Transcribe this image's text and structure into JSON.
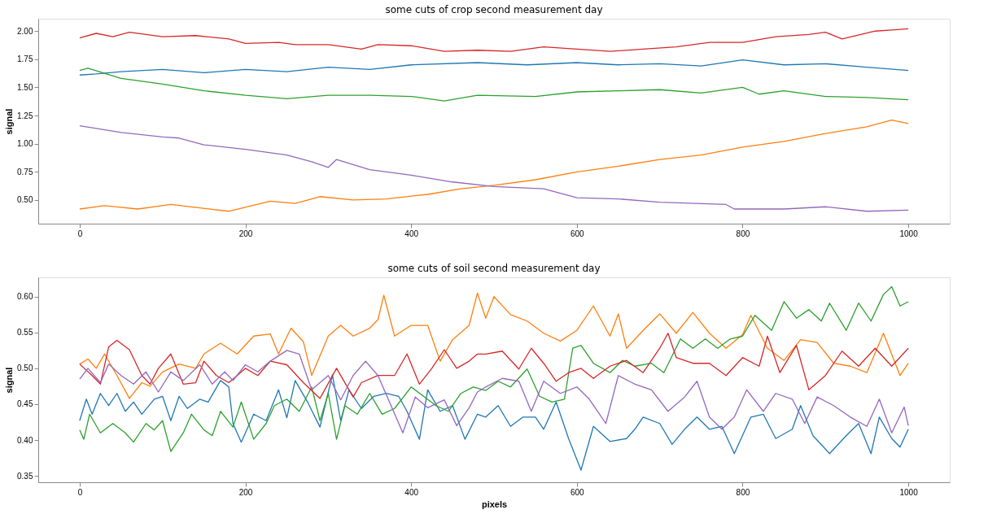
{
  "chart_data": [
    {
      "type": "line",
      "title": "some cuts of crop second measurement day",
      "ylabel": "signal",
      "xlim": [
        -50,
        1050
      ],
      "xticks": [
        0,
        200,
        400,
        600,
        800,
        1000
      ],
      "ylim": [
        0.29,
        2.11
      ],
      "yticks": [
        {
          "value": 0.5,
          "label": "0.50"
        },
        {
          "value": 0.75,
          "label": "0.75"
        },
        {
          "value": 1.0,
          "label": "1.00"
        },
        {
          "value": 1.25,
          "label": "1.25"
        },
        {
          "value": 1.5,
          "label": "1.50"
        },
        {
          "value": 1.75,
          "label": "1.75"
        },
        {
          "value": 2.0,
          "label": "2.00"
        }
      ],
      "grid": false,
      "legend": false,
      "marker": "none",
      "line_style": "solid",
      "series": [
        {
          "color": "#1f77b4",
          "x": [
            0,
            20,
            50,
            100,
            150,
            200,
            250,
            300,
            350,
            400,
            480,
            540,
            600,
            650,
            700,
            750,
            800,
            850,
            900,
            950,
            1000
          ],
          "values": [
            1.61,
            1.62,
            1.64,
            1.66,
            1.63,
            1.66,
            1.64,
            1.68,
            1.66,
            1.7,
            1.72,
            1.7,
            1.72,
            1.7,
            1.71,
            1.69,
            1.745,
            1.7,
            1.71,
            1.68,
            1.65
          ]
        },
        {
          "color": "#ff7f0e",
          "x": [
            0,
            30,
            70,
            110,
            180,
            230,
            260,
            290,
            330,
            370,
            420,
            460,
            500,
            550,
            600,
            650,
            700,
            750,
            800,
            850,
            900,
            950,
            980,
            1000
          ],
          "values": [
            0.42,
            0.45,
            0.42,
            0.46,
            0.4,
            0.49,
            0.47,
            0.53,
            0.5,
            0.51,
            0.55,
            0.6,
            0.63,
            0.68,
            0.75,
            0.8,
            0.86,
            0.9,
            0.97,
            1.02,
            1.09,
            1.15,
            1.21,
            1.18
          ]
        },
        {
          "color": "#2ca02c",
          "x": [
            0,
            10,
            50,
            100,
            150,
            200,
            250,
            300,
            350,
            400,
            440,
            480,
            550,
            600,
            650,
            700,
            750,
            800,
            820,
            850,
            900,
            950,
            1000
          ],
          "values": [
            1.65,
            1.67,
            1.58,
            1.53,
            1.47,
            1.43,
            1.4,
            1.43,
            1.43,
            1.42,
            1.38,
            1.43,
            1.42,
            1.46,
            1.47,
            1.48,
            1.45,
            1.5,
            1.44,
            1.47,
            1.42,
            1.41,
            1.39
          ]
        },
        {
          "color": "#d62728",
          "x": [
            0,
            20,
            40,
            60,
            100,
            140,
            180,
            200,
            240,
            260,
            300,
            340,
            360,
            400,
            440,
            480,
            520,
            560,
            600,
            640,
            680,
            720,
            760,
            800,
            840,
            880,
            900,
            920,
            960,
            980,
            1000
          ],
          "values": [
            1.94,
            1.98,
            1.95,
            1.99,
            1.95,
            1.96,
            1.93,
            1.89,
            1.9,
            1.88,
            1.88,
            1.84,
            1.88,
            1.87,
            1.82,
            1.83,
            1.82,
            1.86,
            1.84,
            1.82,
            1.84,
            1.86,
            1.9,
            1.9,
            1.95,
            1.97,
            1.99,
            1.93,
            2.0,
            2.01,
            2.02
          ]
        },
        {
          "color": "#9467bd",
          "x": [
            0,
            50,
            100,
            120,
            150,
            200,
            250,
            280,
            300,
            310,
            350,
            400,
            450,
            500,
            560,
            600,
            650,
            700,
            780,
            790,
            850,
            900,
            950,
            1000
          ],
          "values": [
            1.16,
            1.1,
            1.06,
            1.05,
            0.99,
            0.95,
            0.9,
            0.84,
            0.79,
            0.86,
            0.77,
            0.72,
            0.66,
            0.62,
            0.6,
            0.52,
            0.51,
            0.48,
            0.46,
            0.42,
            0.42,
            0.44,
            0.4,
            0.41
          ]
        }
      ]
    },
    {
      "type": "line",
      "title": "some cuts of soil second measurement day",
      "xlabel": "pixels",
      "ylabel": "signal",
      "xlim": [
        -50,
        1050
      ],
      "xticks": [
        0,
        200,
        400,
        600,
        800,
        1000
      ],
      "ylim": [
        0.341,
        0.627
      ],
      "yticks": [
        {
          "value": 0.35,
          "label": "0.35"
        },
        {
          "value": 0.4,
          "label": "0.40"
        },
        {
          "value": 0.45,
          "label": "0.45"
        },
        {
          "value": 0.5,
          "label": "0.50"
        },
        {
          "value": 0.55,
          "label": "0.55"
        },
        {
          "value": 0.6,
          "label": "0.60"
        }
      ],
      "grid": false,
      "legend": false,
      "marker": "none",
      "line_style": "solid",
      "series": [
        {
          "color": "#1f77b4",
          "x": [
            0,
            8,
            15,
            25,
            35,
            45,
            55,
            65,
            75,
            90,
            100,
            110,
            120,
            130,
            145,
            155,
            170,
            180,
            185,
            195,
            210,
            225,
            240,
            250,
            260,
            275,
            290,
            305,
            315,
            325,
            340,
            355,
            370,
            385,
            395,
            410,
            420,
            435,
            450,
            465,
            480,
            490,
            505,
            520,
            535,
            550,
            560,
            575,
            590,
            605,
            620,
            640,
            660,
            670,
            680,
            700,
            715,
            730,
            745,
            760,
            775,
            790,
            810,
            825,
            840,
            860,
            870,
            885,
            905,
            925,
            940,
            955,
            965,
            980,
            990,
            1000
          ],
          "values": [
            0.427,
            0.457,
            0.436,
            0.465,
            0.448,
            0.465,
            0.44,
            0.453,
            0.436,
            0.457,
            0.461,
            0.427,
            0.461,
            0.444,
            0.457,
            0.453,
            0.483,
            0.474,
            0.423,
            0.397,
            0.436,
            0.427,
            0.47,
            0.431,
            0.483,
            0.453,
            0.418,
            0.491,
            0.427,
            0.47,
            0.444,
            0.461,
            0.465,
            0.461,
            0.44,
            0.401,
            0.47,
            0.44,
            0.448,
            0.401,
            0.436,
            0.432,
            0.448,
            0.419,
            0.432,
            0.432,
            0.415,
            0.453,
            0.402,
            0.358,
            0.419,
            0.398,
            0.402,
            0.415,
            0.432,
            0.423,
            0.394,
            0.415,
            0.432,
            0.415,
            0.419,
            0.381,
            0.432,
            0.436,
            0.402,
            0.415,
            0.448,
            0.406,
            0.381,
            0.406,
            0.423,
            0.381,
            0.432,
            0.402,
            0.39,
            0.415
          ]
        },
        {
          "color": "#ff7f0e",
          "x": [
            0,
            10,
            20,
            30,
            45,
            60,
            75,
            85,
            100,
            120,
            140,
            150,
            170,
            190,
            210,
            230,
            240,
            255,
            270,
            280,
            300,
            315,
            330,
            350,
            360,
            367,
            380,
            400,
            420,
            435,
            450,
            470,
            480,
            490,
            500,
            520,
            540,
            560,
            580,
            600,
            620,
            640,
            650,
            660,
            680,
            700,
            720,
            740,
            760,
            780,
            800,
            810,
            830,
            850,
            870,
            890,
            910,
            930,
            950,
            970,
            990,
            1000
          ],
          "values": [
            0.506,
            0.513,
            0.5,
            0.52,
            0.49,
            0.458,
            0.48,
            0.475,
            0.495,
            0.506,
            0.5,
            0.52,
            0.535,
            0.52,
            0.545,
            0.548,
            0.52,
            0.556,
            0.537,
            0.49,
            0.545,
            0.56,
            0.545,
            0.556,
            0.568,
            0.602,
            0.545,
            0.56,
            0.56,
            0.51,
            0.54,
            0.56,
            0.605,
            0.57,
            0.6,
            0.575,
            0.566,
            0.549,
            0.538,
            0.553,
            0.587,
            0.545,
            0.576,
            0.528,
            0.553,
            0.576,
            0.549,
            0.578,
            0.549,
            0.528,
            0.547,
            0.574,
            0.528,
            0.511,
            0.54,
            0.536,
            0.507,
            0.503,
            0.494,
            0.549,
            0.49,
            0.507
          ]
        },
        {
          "color": "#2ca02c",
          "x": [
            0,
            5,
            12,
            25,
            40,
            55,
            65,
            80,
            90,
            100,
            110,
            125,
            135,
            150,
            160,
            170,
            185,
            195,
            210,
            225,
            235,
            250,
            265,
            280,
            290,
            300,
            310,
            320,
            335,
            350,
            365,
            380,
            400,
            415,
            430,
            445,
            460,
            475,
            490,
            505,
            520,
            540,
            555,
            570,
            585,
            595,
            605,
            620,
            640,
            655,
            670,
            690,
            705,
            725,
            740,
            755,
            770,
            785,
            800,
            815,
            835,
            850,
            865,
            880,
            895,
            905,
            925,
            940,
            955,
            970,
            980,
            990,
            1000
          ],
          "values": [
            0.414,
            0.401,
            0.436,
            0.41,
            0.423,
            0.41,
            0.397,
            0.423,
            0.414,
            0.427,
            0.384,
            0.41,
            0.436,
            0.414,
            0.406,
            0.44,
            0.418,
            0.453,
            0.401,
            0.423,
            0.448,
            0.457,
            0.44,
            0.474,
            0.427,
            0.465,
            0.401,
            0.448,
            0.436,
            0.465,
            0.436,
            0.444,
            0.474,
            0.461,
            0.448,
            0.44,
            0.465,
            0.474,
            0.469,
            0.482,
            0.474,
            0.499,
            0.461,
            0.453,
            0.457,
            0.528,
            0.532,
            0.507,
            0.494,
            0.511,
            0.503,
            0.507,
            0.494,
            0.541,
            0.528,
            0.541,
            0.528,
            0.541,
            0.545,
            0.574,
            0.553,
            0.593,
            0.57,
            0.582,
            0.566,
            0.591,
            0.553,
            0.591,
            0.566,
            0.603,
            0.614,
            0.587,
            0.593
          ]
        },
        {
          "color": "#d62728",
          "x": [
            0,
            15,
            25,
            35,
            45,
            60,
            75,
            85,
            95,
            110,
            125,
            140,
            150,
            165,
            180,
            200,
            215,
            230,
            250,
            270,
            290,
            310,
            330,
            340,
            360,
            380,
            395,
            410,
            425,
            440,
            455,
            470,
            480,
            490,
            510,
            530,
            545,
            560,
            575,
            590,
            605,
            620,
            640,
            660,
            680,
            700,
            710,
            720,
            740,
            760,
            780,
            800,
            820,
            830,
            845,
            865,
            880,
            900,
            920,
            940,
            960,
            980,
            1000
          ],
          "values": [
            0.506,
            0.49,
            0.478,
            0.53,
            0.539,
            0.526,
            0.49,
            0.478,
            0.5,
            0.52,
            0.478,
            0.48,
            0.51,
            0.49,
            0.48,
            0.5,
            0.49,
            0.51,
            0.505,
            0.48,
            0.458,
            0.5,
            0.46,
            0.48,
            0.49,
            0.49,
            0.52,
            0.478,
            0.5,
            0.526,
            0.5,
            0.51,
            0.52,
            0.52,
            0.524,
            0.499,
            0.528,
            0.507,
            0.482,
            0.494,
            0.5,
            0.486,
            0.503,
            0.511,
            0.494,
            0.528,
            0.549,
            0.515,
            0.507,
            0.507,
            0.49,
            0.515,
            0.503,
            0.545,
            0.494,
            0.532,
            0.47,
            0.49,
            0.524,
            0.503,
            0.528,
            0.503,
            0.528
          ]
        },
        {
          "color": "#9467bd",
          "x": [
            0,
            10,
            25,
            35,
            50,
            65,
            80,
            95,
            110,
            125,
            145,
            160,
            175,
            185,
            200,
            215,
            230,
            250,
            265,
            280,
            300,
            315,
            330,
            345,
            360,
            375,
            390,
            405,
            420,
            440,
            455,
            470,
            480,
            490,
            510,
            530,
            545,
            560,
            580,
            600,
            615,
            635,
            650,
            670,
            690,
            710,
            730,
            745,
            760,
            775,
            790,
            805,
            825,
            840,
            860,
            875,
            890,
            910,
            930,
            950,
            965,
            980,
            995,
            1000
          ],
          "values": [
            0.485,
            0.5,
            0.48,
            0.506,
            0.49,
            0.478,
            0.495,
            0.467,
            0.495,
            0.483,
            0.505,
            0.478,
            0.495,
            0.483,
            0.505,
            0.495,
            0.51,
            0.525,
            0.52,
            0.47,
            0.49,
            0.456,
            0.49,
            0.51,
            0.49,
            0.45,
            0.41,
            0.46,
            0.445,
            0.456,
            0.42,
            0.445,
            0.467,
            0.474,
            0.486,
            0.482,
            0.44,
            0.482,
            0.465,
            0.474,
            0.457,
            0.423,
            0.49,
            0.478,
            0.47,
            0.44,
            0.46,
            0.482,
            0.432,
            0.415,
            0.432,
            0.47,
            0.44,
            0.465,
            0.457,
            0.423,
            0.46,
            0.448,
            0.432,
            0.419,
            0.457,
            0.41,
            0.446,
            0.42
          ]
        }
      ]
    }
  ]
}
